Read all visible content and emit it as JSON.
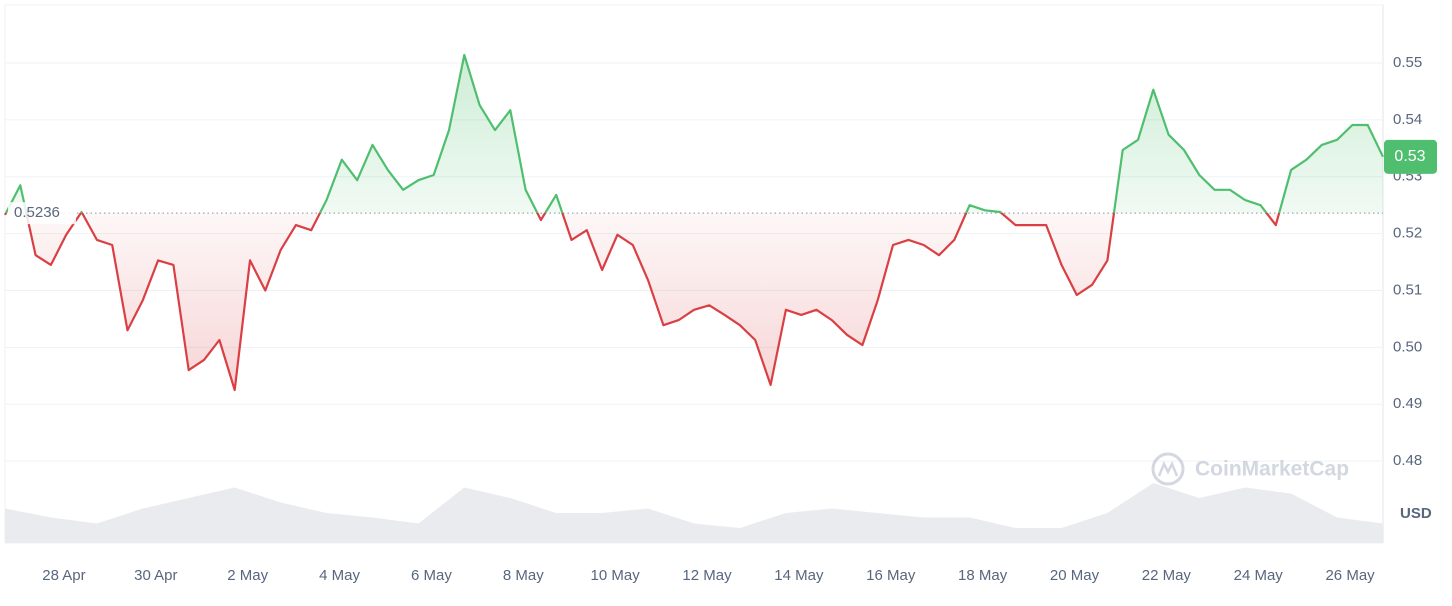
{
  "chart_data": {
    "type": "line",
    "values": [
      0.5233,
      0.5285,
      0.5162,
      0.5145,
      0.5198,
      0.5238,
      0.5189,
      0.518,
      0.503,
      0.5083,
      0.5153,
      0.5145,
      0.496,
      0.4978,
      0.5013,
      0.4925,
      0.5153,
      0.51,
      0.5171,
      0.5215,
      0.5206,
      0.5259,
      0.533,
      0.5294,
      0.5356,
      0.5312,
      0.5277,
      0.5294,
      0.5303,
      0.5382,
      0.5514,
      0.5426,
      0.5382,
      0.5417,
      0.5277,
      0.5224,
      0.5268,
      0.5189,
      0.5206,
      0.5136,
      0.5198,
      0.518,
      0.5118,
      0.5039,
      0.5048,
      0.5066,
      0.5074,
      0.5057,
      0.5039,
      0.5013,
      0.4934,
      0.5066,
      0.5057,
      0.5066,
      0.5048,
      0.5022,
      0.5004,
      0.5083,
      0.518,
      0.5189,
      0.518,
      0.5162,
      0.5189,
      0.525,
      0.5241,
      0.5238,
      0.5215,
      0.5215,
      0.5215,
      0.5145,
      0.5092,
      0.511,
      0.5153,
      0.5347,
      0.5365,
      0.5453,
      0.5374,
      0.5347,
      0.5303,
      0.5277,
      0.5277,
      0.5259,
      0.525,
      0.5215,
      0.5312,
      0.533,
      0.5356,
      0.5365,
      0.5391,
      0.5391,
      0.5335
    ],
    "up_color": "#4fbf6f",
    "down_color": "#d93f43",
    "baseline": 0.5236,
    "last_price_label": "0.53",
    "xlim": [
      0,
      90
    ],
    "xticks": [
      {
        "value": 3.85,
        "label": "28 Apr"
      },
      {
        "value": 9.85,
        "label": "30 Apr"
      },
      {
        "value": 15.85,
        "label": "2 May"
      },
      {
        "value": 21.85,
        "label": "4 May"
      },
      {
        "value": 27.85,
        "label": "6 May"
      },
      {
        "value": 33.85,
        "label": "8 May"
      },
      {
        "value": 39.85,
        "label": "10 May"
      },
      {
        "value": 45.85,
        "label": "12 May"
      },
      {
        "value": 51.85,
        "label": "14 May"
      },
      {
        "value": 57.85,
        "label": "16 May"
      },
      {
        "value": 63.85,
        "label": "18 May"
      },
      {
        "value": 69.85,
        "label": "20 May"
      },
      {
        "value": 75.85,
        "label": "22 May"
      },
      {
        "value": 81.85,
        "label": "24 May"
      },
      {
        "value": 87.85,
        "label": "26 May"
      }
    ],
    "ylim": [
      0.4656,
      0.5602
    ],
    "yticks": [
      0.48,
      0.49,
      {
        "value": 0.5,
        "label": "0.50"
      },
      0.51,
      0.52,
      0.53,
      0.54,
      0.55
    ],
    "grid": true,
    "y_unit": "USD",
    "watermark": "CoinMarketCap",
    "volume_values": [
      23,
      17,
      13,
      23,
      30,
      37,
      27,
      20,
      17,
      13,
      37,
      30,
      20,
      20,
      23,
      13,
      10,
      20,
      23,
      20,
      17,
      17,
      10,
      10,
      20,
      40,
      30,
      37,
      33,
      17,
      13
    ],
    "volume_ylim": [
      0,
      100
    ],
    "volume_color": "#e9ebef"
  }
}
